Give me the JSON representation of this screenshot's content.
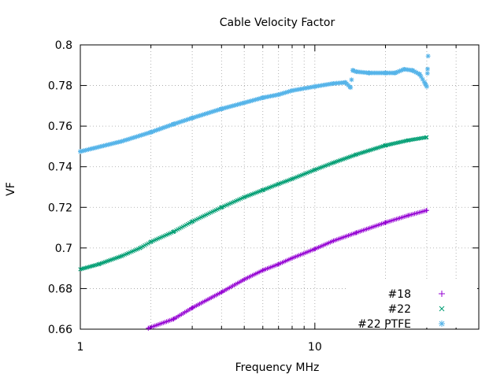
{
  "chart_data": {
    "type": "scatter",
    "title": "Cable Velocity Factor",
    "xlabel": "Frequency MHz",
    "ylabel": "VF",
    "xscale": "log",
    "xlim": [
      1,
      50
    ],
    "ylim": [
      0.66,
      0.8
    ],
    "x_ticks": [
      1,
      10
    ],
    "x_tick_labels": [
      "1",
      "10"
    ],
    "y_ticks": [
      0.66,
      0.68,
      0.7,
      0.72,
      0.74,
      0.76,
      0.78,
      0.8
    ],
    "y_tick_labels": [
      "0.66",
      "0.68",
      "0.7",
      "0.72",
      "0.74",
      "0.76",
      "0.78",
      "0.8"
    ],
    "grid": true,
    "legend": "bottom-right",
    "series": [
      {
        "name": "#18",
        "marker": "+",
        "color": "#9400d3",
        "points": [
          [
            1.95,
            0.6605
          ],
          [
            2.5,
            0.665
          ],
          [
            3,
            0.6705
          ],
          [
            4,
            0.6782
          ],
          [
            5,
            0.6845
          ],
          [
            6,
            0.689
          ],
          [
            7,
            0.692
          ],
          [
            8,
            0.695
          ],
          [
            10,
            0.6995
          ],
          [
            12,
            0.7035
          ],
          [
            15,
            0.7075
          ],
          [
            20,
            0.7125
          ],
          [
            25,
            0.716
          ],
          [
            30,
            0.7185
          ]
        ]
      },
      {
        "name": "#22",
        "marker": "x",
        "color": "#009e73",
        "points": [
          [
            1,
            0.6895
          ],
          [
            1.2,
            0.692
          ],
          [
            1.5,
            0.696
          ],
          [
            1.8,
            0.7
          ],
          [
            2,
            0.703
          ],
          [
            2.5,
            0.708
          ],
          [
            3,
            0.713
          ],
          [
            4,
            0.72
          ],
          [
            5,
            0.725
          ],
          [
            6,
            0.7285
          ],
          [
            7,
            0.7315
          ],
          [
            8,
            0.734
          ],
          [
            10,
            0.7385
          ],
          [
            12,
            0.742
          ],
          [
            15,
            0.746
          ],
          [
            20,
            0.7505
          ],
          [
            25,
            0.753
          ],
          [
            30,
            0.7545
          ]
        ]
      },
      {
        "name": "#22 PTFE",
        "marker": "*",
        "color": "#56b4e9",
        "points": [
          [
            1,
            0.7475
          ],
          [
            1.5,
            0.7525
          ],
          [
            2,
            0.757
          ],
          [
            2.5,
            0.761
          ],
          [
            3,
            0.764
          ],
          [
            4,
            0.7685
          ],
          [
            5,
            0.7715
          ],
          [
            6,
            0.774
          ],
          [
            7,
            0.7755
          ],
          [
            8,
            0.7775
          ],
          [
            10,
            0.7795
          ],
          [
            12,
            0.781
          ],
          [
            13.5,
            0.7815
          ],
          [
            14.2,
            0.779
          ],
          [
            14.5,
            0.7875
          ],
          [
            15,
            0.7868
          ],
          [
            17,
            0.7862
          ],
          [
            20,
            0.7862
          ],
          [
            22,
            0.7862
          ],
          [
            24,
            0.788
          ],
          [
            26,
            0.7875
          ],
          [
            28,
            0.7855
          ],
          [
            29.5,
            0.781
          ],
          [
            30,
            0.7795
          ],
          [
            30.2,
            0.786
          ],
          [
            30.4,
            0.7945
          ]
        ]
      }
    ]
  }
}
